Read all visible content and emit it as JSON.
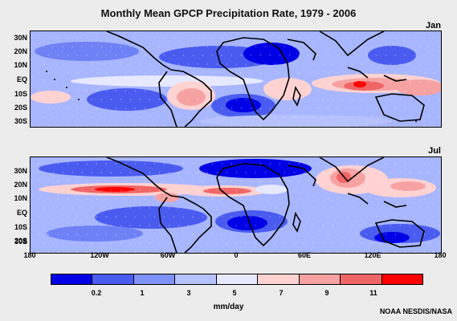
{
  "title": "Monthly Mean GPCP Precipitation Rate, 1979 - 2006",
  "panels": [
    {
      "label": "Jan",
      "lat_ticks": [
        "30N",
        "20N",
        "10N",
        "EQ",
        "10S",
        "20S",
        "30S"
      ]
    },
    {
      "label": "Jul",
      "lat_ticks": [
        "30N",
        "20N",
        "10N",
        "EQ",
        "10S",
        "20S",
        "30S"
      ]
    }
  ],
  "lon_ticks": [
    "180",
    "120W",
    "60W",
    "0",
    "60E",
    "120E",
    "180"
  ],
  "legend": {
    "units": "mm/day",
    "levels": [
      "0.2",
      "1",
      "3",
      "5",
      "7",
      "9",
      "11"
    ],
    "colors": [
      "#0000e6",
      "#4a5cf0",
      "#7e92f7",
      "#b6c2ff",
      "#e6e8ff",
      "#ffd2d2",
      "#f7a2a2",
      "#f06666",
      "#ff0000"
    ]
  },
  "credit": "NOAA NESDIS/NASA"
}
